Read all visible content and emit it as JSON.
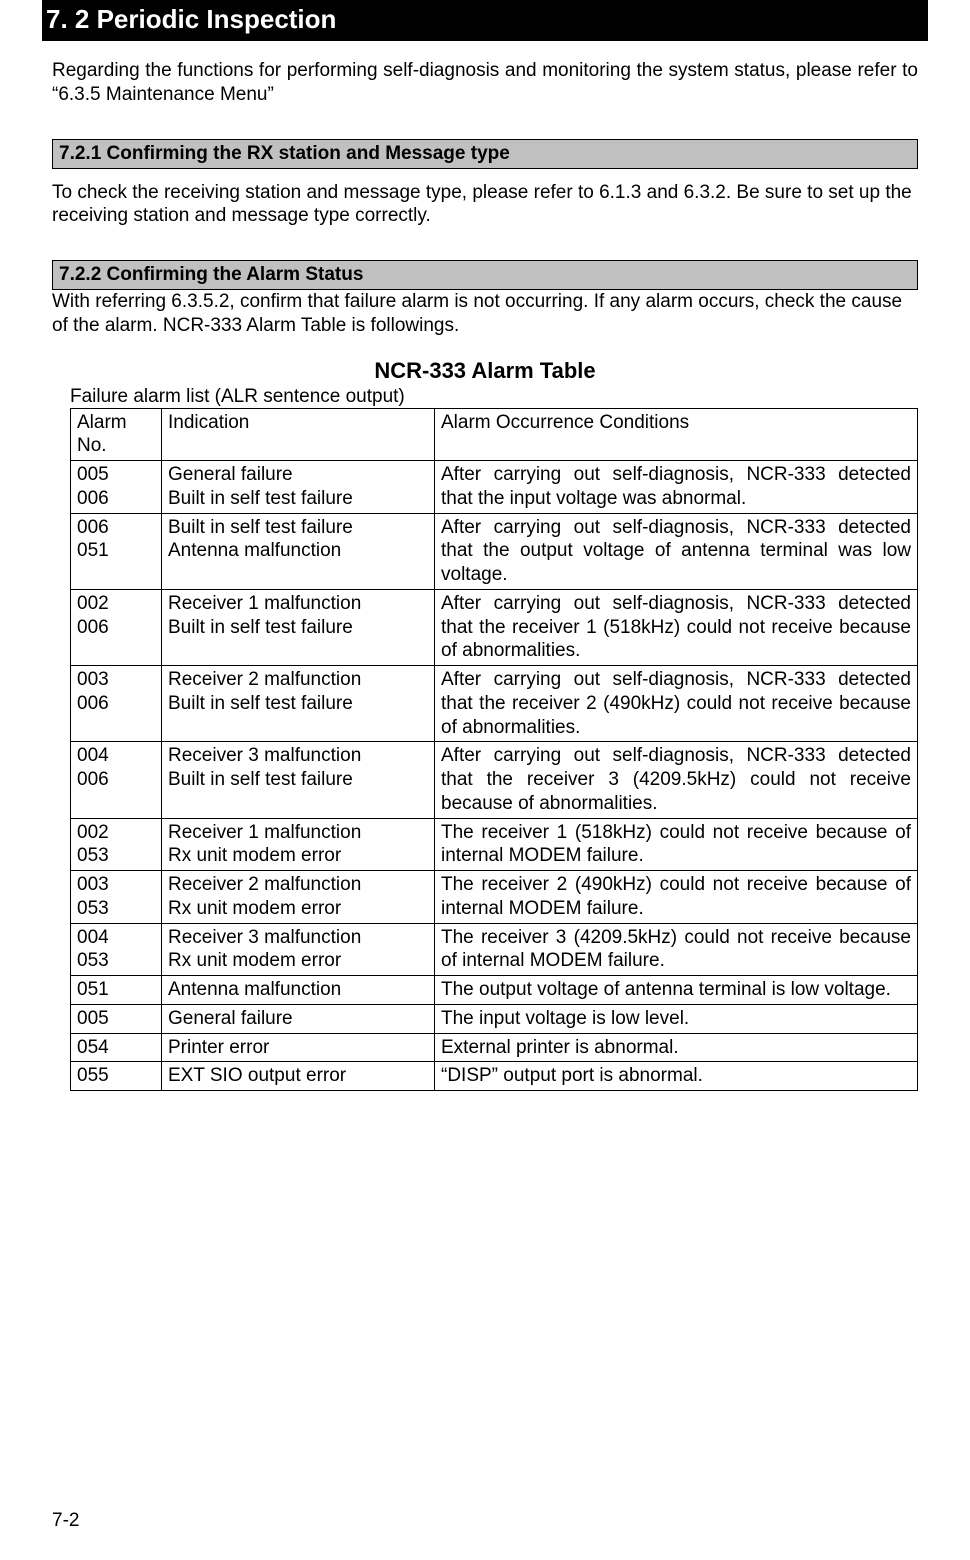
{
  "banner": "7. 2   Periodic Inspection",
  "intro": "Regarding the functions for performing self-diagnosis and monitoring the system status, please refer to “6.3.5 Maintenance Menu”",
  "sec721_title": "7.2.1 Confirming the RX station and Message type",
  "sec721_body": "To check the receiving station and message type, please refer to 6.1.3 and 6.3.2. Be sure to set up the receiving station and message type correctly.",
  "sec722_title": "7.2.2 Confirming the Alarm Status",
  "sec722_body": "With referring 6.3.5.2, confirm that failure alarm is not occurring. If any alarm occurs, check the cause of the alarm. NCR-333 Alarm Table is followings.",
  "table_title": "NCR-333 Alarm Table",
  "table_caption": "Failure alarm list    (ALR sentence output)",
  "headers": {
    "no": "Alarm No.",
    "ind": "Indication",
    "cond": "Alarm Occurrence Conditions"
  },
  "rows": [
    {
      "no": "005\n006",
      "ind": "General failure\nBuilt in self test failure",
      "cond": "After carrying out self-diagnosis, NCR-333 detected that the input voltage was abnormal."
    },
    {
      "no": "006\n051",
      "ind": "Built in self test failure\nAntenna malfunction",
      "cond": "After carrying out self-diagnosis, NCR-333 detected that the output voltage of antenna terminal was low voltage."
    },
    {
      "no": "002\n006",
      "ind": "Receiver 1 malfunction\nBuilt in self test failure",
      "cond": "After carrying out self-diagnosis, NCR-333 detected that the receiver 1 (518kHz) could not receive because of abnormalities."
    },
    {
      "no": "003\n006",
      "ind": "Receiver 2 malfunction\nBuilt in self test failure",
      "cond": "After carrying out self-diagnosis, NCR-333 detected that the receiver 2 (490kHz) could not receive because of abnormalities."
    },
    {
      "no": "004\n006",
      "ind": "Receiver 3 malfunction\nBuilt in self test failure",
      "cond": "After carrying out self-diagnosis, NCR-333 detected that the receiver 3 (4209.5kHz) could not receive because of abnormalities."
    },
    {
      "no": "002\n053",
      "ind": "Receiver 1 malfunction\nRx unit modem error",
      "cond": "The receiver 1 (518kHz) could not receive because of internal MODEM failure."
    },
    {
      "no": "003\n053",
      "ind": "Receiver 2 malfunction\nRx unit modem error",
      "cond": "The receiver 2 (490kHz) could not receive because of internal MODEM failure."
    },
    {
      "no": "004\n053",
      "ind": "Receiver 3 malfunction\nRx unit modem error",
      "cond": "The receiver 3 (4209.5kHz) could not receive because of internal MODEM failure."
    },
    {
      "no": "051",
      "ind": "Antenna malfunction",
      "cond": "The output voltage of antenna terminal is low voltage."
    },
    {
      "no": "005",
      "ind": "General failure",
      "cond": "The input voltage is low level."
    },
    {
      "no": "054",
      "ind": "Printer error",
      "cond": "External printer is abnormal."
    },
    {
      "no": "055",
      "ind": "EXT SIO output error",
      "cond": "“DISP” output port is abnormal."
    }
  ],
  "page_number": "7-2"
}
